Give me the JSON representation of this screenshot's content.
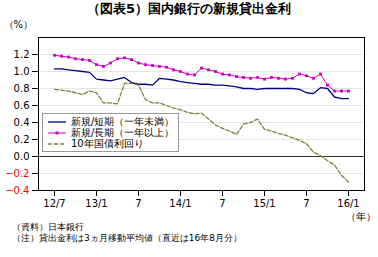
{
  "chart_data": {
    "type": "line",
    "title": "（図表5）国内銀行の新規貸出金利",
    "ylabel": "（%）",
    "xlabel": "（年）",
    "annotations": [
      "（資料）日本銀行",
      "（注）貸出金利は3ヵ月移動平均値（直近は16年8月分）"
    ],
    "categories": [
      "12/7",
      null,
      null,
      null,
      null,
      null,
      "13/1",
      null,
      null,
      null,
      null,
      null,
      "7",
      null,
      null,
      null,
      null,
      null,
      "14/1",
      null,
      null,
      null,
      null,
      null,
      "7",
      null,
      null,
      null,
      null,
      null,
      "15/1",
      null,
      null,
      null,
      null,
      null,
      "7",
      null,
      null,
      null,
      null,
      null,
      "16/1"
    ],
    "series": [
      {
        "name": "新規/短期（一年未満）",
        "color": "#00008B",
        "line_style": "solid",
        "values": [
          1.03,
          1.03,
          1.02,
          1.01,
          1.0,
          0.99,
          0.91,
          0.9,
          0.89,
          0.91,
          0.93,
          0.87,
          0.85,
          0.85,
          0.84,
          0.92,
          0.91,
          0.9,
          0.88,
          0.87,
          0.86,
          0.85,
          0.85,
          0.84,
          0.84,
          0.83,
          0.82,
          0.8,
          0.8,
          0.79,
          0.8,
          0.8,
          0.8,
          0.8,
          0.8,
          0.79,
          0.75,
          0.74,
          0.81,
          0.8,
          0.7,
          0.68,
          0.68
        ]
      },
      {
        "name": "新規/長期（一年以上）",
        "color": "#CC00CC",
        "line_style": "solid",
        "marker": "square",
        "values": [
          1.19,
          1.18,
          1.17,
          1.15,
          1.14,
          1.13,
          1.08,
          1.06,
          1.1,
          1.15,
          1.16,
          1.14,
          1.1,
          1.08,
          1.07,
          1.06,
          1.05,
          1.02,
          1.0,
          0.97,
          0.96,
          1.04,
          1.02,
          1.0,
          0.97,
          0.96,
          0.94,
          0.93,
          0.92,
          0.93,
          0.91,
          0.93,
          0.92,
          0.91,
          0.92,
          0.97,
          0.95,
          0.92,
          0.97,
          0.84,
          0.77,
          0.77,
          0.77
        ]
      },
      {
        "name": "10年国債利回り",
        "color": "#808040",
        "line_style": "dashed",
        "values": [
          0.79,
          0.78,
          0.77,
          0.75,
          0.73,
          0.77,
          0.75,
          0.63,
          0.63,
          0.62,
          0.86,
          0.86,
          0.84,
          0.67,
          0.63,
          0.63,
          0.6,
          0.57,
          0.55,
          0.52,
          0.5,
          0.51,
          0.44,
          0.37,
          0.33,
          0.3,
          0.26,
          0.38,
          0.4,
          0.44,
          0.32,
          0.3,
          0.27,
          0.25,
          0.22,
          0.19,
          0.15,
          0.05,
          0.01,
          -0.05,
          -0.1,
          -0.22,
          -0.3
        ]
      }
    ],
    "ylim": [
      -0.4,
      1.4
    ],
    "yticks": [
      {
        "value": -0.4,
        "label": "−0.4"
      },
      {
        "value": -0.2,
        "label": "−0.2"
      },
      {
        "value": 0.0,
        "label": "0.0"
      },
      0.2,
      0.4,
      0.6,
      0.8,
      {
        "value": 1.0,
        "label": "1.0"
      },
      1.2
    ],
    "grid": "y",
    "legend": "lower left"
  }
}
